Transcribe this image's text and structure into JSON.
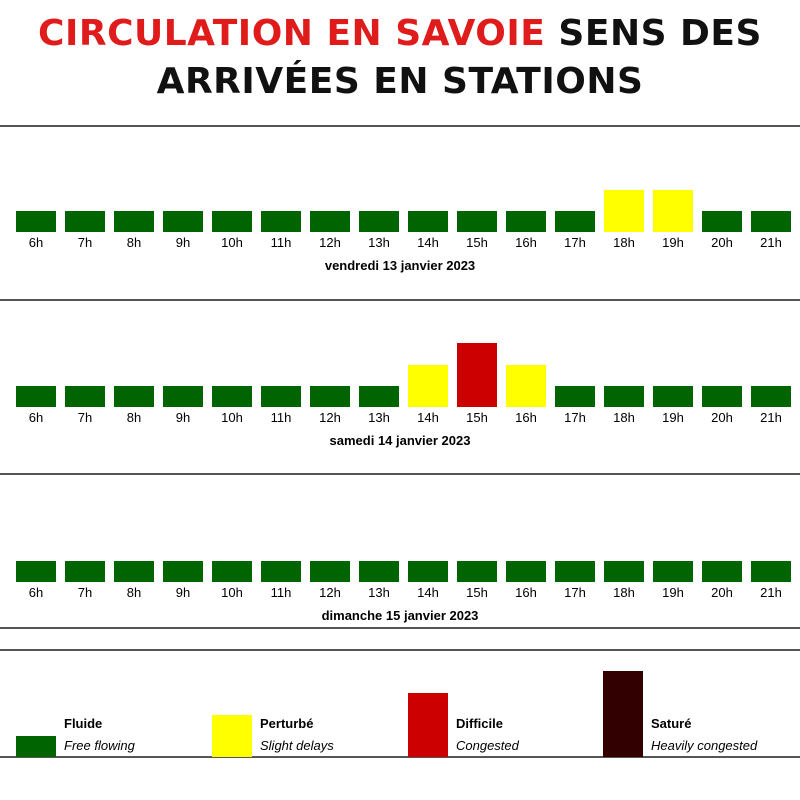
{
  "title": {
    "part1": "CIRCULATION EN SAVOIE",
    "part2": "SENS DES ARRIVÉES EN STATIONS"
  },
  "colors": {
    "fluide": "#006400",
    "perturbe": "#ffff00",
    "difficile": "#cc0000",
    "sature": "#330000"
  },
  "chart_data": {
    "type": "bar",
    "level_scale": {
      "fluide": 1,
      "perturbe": 2,
      "difficile": 3,
      "sature": 4
    },
    "categories": [
      "6h",
      "7h",
      "8h",
      "9h",
      "10h",
      "11h",
      "12h",
      "13h",
      "14h",
      "15h",
      "16h",
      "17h",
      "18h",
      "19h",
      "20h",
      "21h"
    ],
    "days": [
      {
        "label": "vendredi 13 janvier 2023",
        "levels": [
          "fluide",
          "fluide",
          "fluide",
          "fluide",
          "fluide",
          "fluide",
          "fluide",
          "fluide",
          "fluide",
          "fluide",
          "fluide",
          "fluide",
          "perturbe",
          "perturbe",
          "fluide",
          "fluide"
        ]
      },
      {
        "label": "samedi 14 janvier 2023",
        "levels": [
          "fluide",
          "fluide",
          "fluide",
          "fluide",
          "fluide",
          "fluide",
          "fluide",
          "fluide",
          "perturbe",
          "difficile",
          "perturbe",
          "fluide",
          "fluide",
          "fluide",
          "fluide",
          "fluide"
        ]
      },
      {
        "label": "dimanche 15 janvier 2023",
        "levels": [
          "fluide",
          "fluide",
          "fluide",
          "fluide",
          "fluide",
          "fluide",
          "fluide",
          "fluide",
          "fluide",
          "fluide",
          "fluide",
          "fluide",
          "fluide",
          "fluide",
          "fluide",
          "fluide"
        ]
      }
    ],
    "legend": [
      {
        "key": "fluide",
        "label": "Fluide",
        "sub": "Free flowing"
      },
      {
        "key": "perturbe",
        "label": "Perturbé",
        "sub": "Slight delays"
      },
      {
        "key": "difficile",
        "label": "Difficile",
        "sub": "Congested"
      },
      {
        "key": "sature",
        "label": "Saturé",
        "sub": "Heavily congested"
      }
    ]
  }
}
